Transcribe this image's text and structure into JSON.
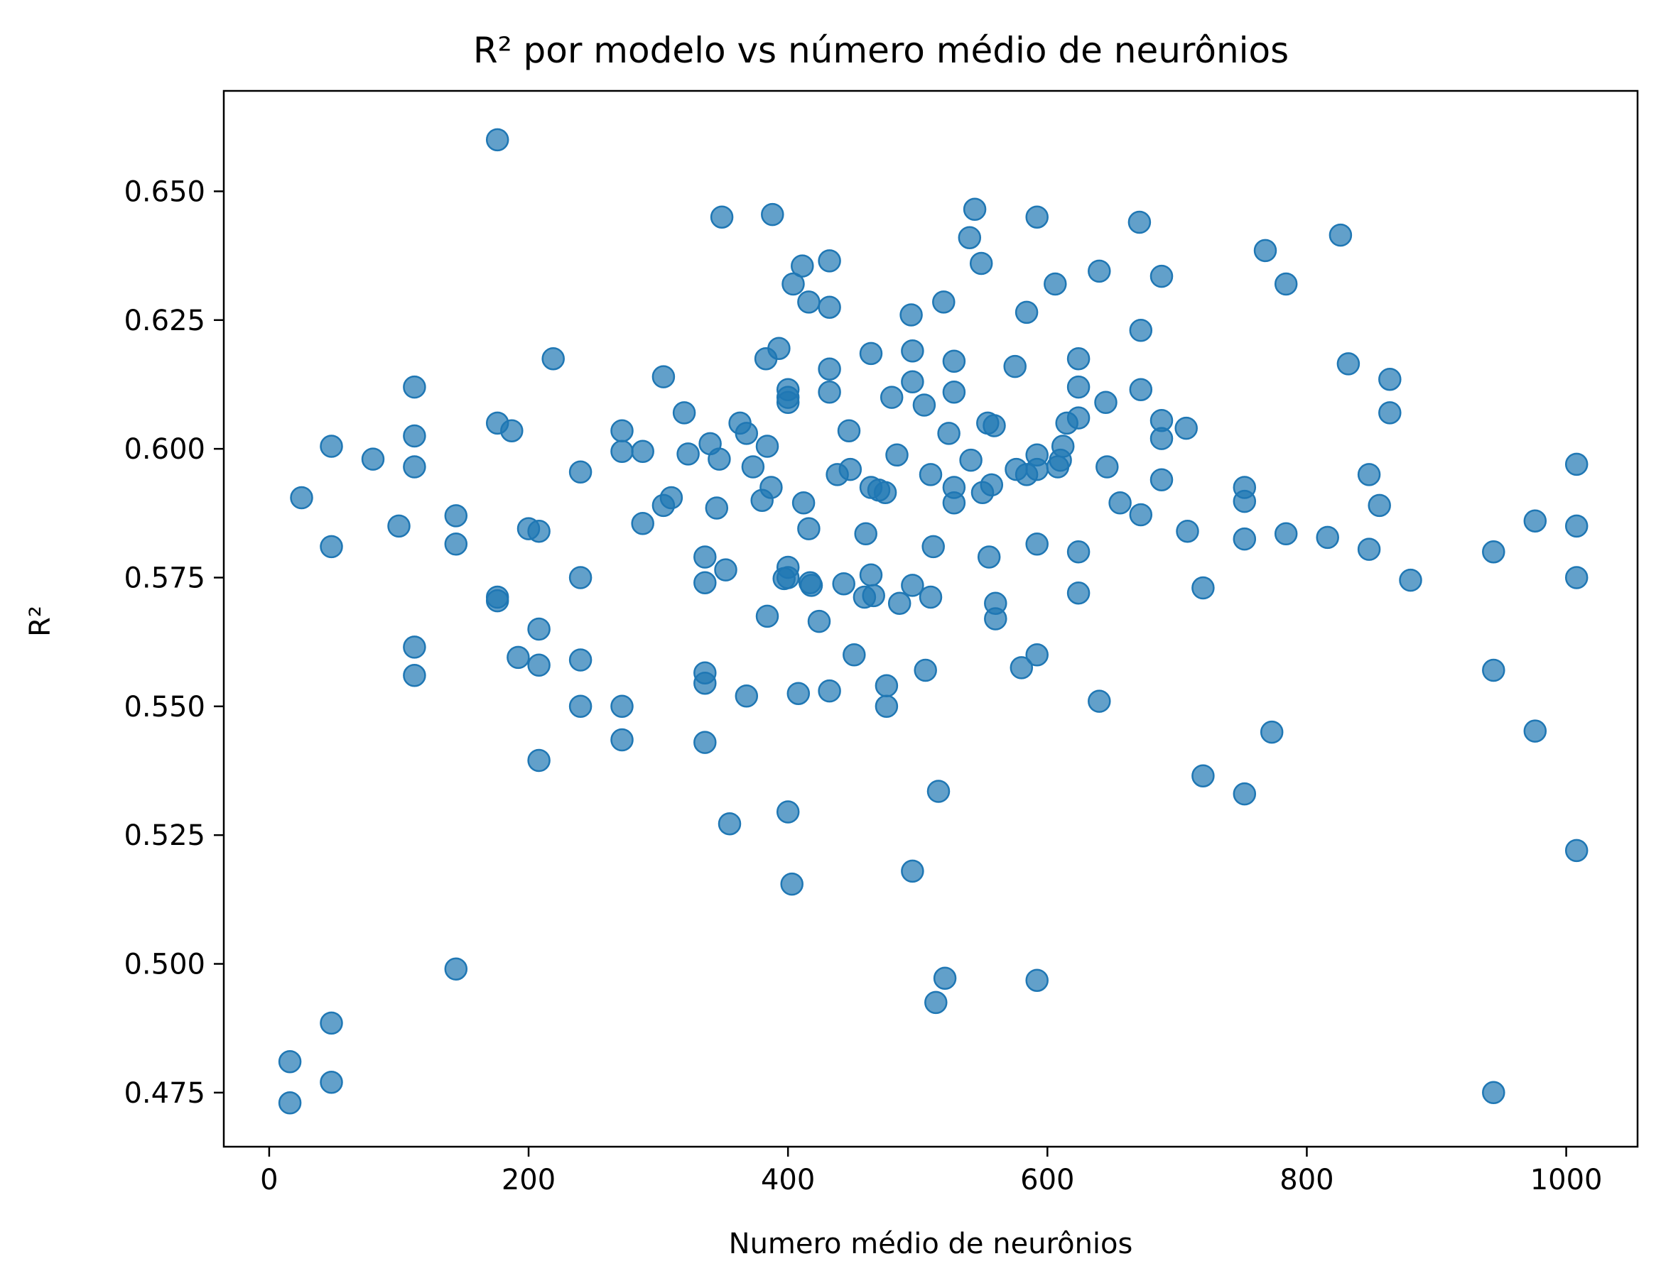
{
  "chart_data": {
    "type": "scatter",
    "title": "R² por modelo vs número médio de neurônios",
    "xlabel": "Numero médio de neurônios",
    "ylabel": "R²",
    "xlim": [
      -35,
      1055
    ],
    "ylim": [
      0.4645,
      0.6695
    ],
    "xticks": [
      0,
      200,
      400,
      600,
      800,
      1000
    ],
    "yticks": [
      0.475,
      0.5,
      0.525,
      0.55,
      0.575,
      0.6,
      0.625,
      0.65
    ],
    "xtick_labels": [
      "0",
      "200",
      "400",
      "600",
      "800",
      "1000"
    ],
    "ytick_labels": [
      "0.475",
      "0.500",
      "0.525",
      "0.550",
      "0.575",
      "0.600",
      "0.625",
      "0.650"
    ],
    "grid": false,
    "color": "#1f77b4",
    "points": [
      [
        16,
        0.481
      ],
      [
        16,
        0.473
      ],
      [
        48,
        0.4885
      ],
      [
        48,
        0.477
      ],
      [
        25,
        0.5905
      ],
      [
        48,
        0.6005
      ],
      [
        48,
        0.581
      ],
      [
        80,
        0.598
      ],
      [
        100,
        0.585
      ],
      [
        112,
        0.612
      ],
      [
        112,
        0.6025
      ],
      [
        112,
        0.5965
      ],
      [
        112,
        0.5615
      ],
      [
        112,
        0.556
      ],
      [
        144,
        0.587
      ],
      [
        144,
        0.5815
      ],
      [
        144,
        0.499
      ],
      [
        176,
        0.66
      ],
      [
        176,
        0.605
      ],
      [
        176,
        0.5712
      ],
      [
        176,
        0.5705
      ],
      [
        187,
        0.6035
      ],
      [
        192,
        0.5595
      ],
      [
        200,
        0.5845
      ],
      [
        208,
        0.584
      ],
      [
        208,
        0.565
      ],
      [
        208,
        0.558
      ],
      [
        208,
        0.5395
      ],
      [
        219,
        0.6175
      ],
      [
        240,
        0.5955
      ],
      [
        240,
        0.575
      ],
      [
        240,
        0.559
      ],
      [
        240,
        0.55
      ],
      [
        272,
        0.6035
      ],
      [
        272,
        0.5995
      ],
      [
        272,
        0.55
      ],
      [
        272,
        0.5435
      ],
      [
        288,
        0.5855
      ],
      [
        288,
        0.5995
      ],
      [
        304,
        0.614
      ],
      [
        304,
        0.589
      ],
      [
        310,
        0.5905
      ],
      [
        320,
        0.607
      ],
      [
        323,
        0.599
      ],
      [
        336,
        0.579
      ],
      [
        336,
        0.574
      ],
      [
        336,
        0.5565
      ],
      [
        336,
        0.5545
      ],
      [
        336,
        0.543
      ],
      [
        340,
        0.601
      ],
      [
        345,
        0.5885
      ],
      [
        347,
        0.598
      ],
      [
        349,
        0.645
      ],
      [
        352,
        0.5765
      ],
      [
        355,
        0.5272
      ],
      [
        363,
        0.605
      ],
      [
        368,
        0.603
      ],
      [
        368,
        0.552
      ],
      [
        373,
        0.5965
      ],
      [
        380,
        0.59
      ],
      [
        383,
        0.6175
      ],
      [
        384,
        0.6005
      ],
      [
        384,
        0.5675
      ],
      [
        387,
        0.5925
      ],
      [
        388,
        0.6455
      ],
      [
        393,
        0.6195
      ],
      [
        397,
        0.5748
      ],
      [
        400,
        0.6115
      ],
      [
        400,
        0.61
      ],
      [
        400,
        0.609
      ],
      [
        400,
        0.577
      ],
      [
        400,
        0.575
      ],
      [
        400,
        0.5295
      ],
      [
        403,
        0.5155
      ],
      [
        404,
        0.632
      ],
      [
        408,
        0.5525
      ],
      [
        411,
        0.6355
      ],
      [
        412,
        0.5895
      ],
      [
        416,
        0.6285
      ],
      [
        416,
        0.5845
      ],
      [
        417,
        0.574
      ],
      [
        418,
        0.5735
      ],
      [
        424,
        0.5665
      ],
      [
        432,
        0.6365
      ],
      [
        432,
        0.6275
      ],
      [
        432,
        0.6155
      ],
      [
        432,
        0.611
      ],
      [
        432,
        0.553
      ],
      [
        438,
        0.595
      ],
      [
        443,
        0.5738
      ],
      [
        447,
        0.6035
      ],
      [
        448,
        0.596
      ],
      [
        451,
        0.56
      ],
      [
        459,
        0.5712
      ],
      [
        460,
        0.5835
      ],
      [
        464,
        0.6185
      ],
      [
        464,
        0.5925
      ],
      [
        464,
        0.5755
      ],
      [
        466,
        0.5715
      ],
      [
        470,
        0.592
      ],
      [
        475,
        0.5915
      ],
      [
        476,
        0.554
      ],
      [
        476,
        0.55
      ],
      [
        480,
        0.61
      ],
      [
        484,
        0.5988
      ],
      [
        486,
        0.57
      ],
      [
        495,
        0.626
      ],
      [
        496,
        0.619
      ],
      [
        496,
        0.613
      ],
      [
        496,
        0.5735
      ],
      [
        496,
        0.518
      ],
      [
        505,
        0.6085
      ],
      [
        506,
        0.557
      ],
      [
        510,
        0.595
      ],
      [
        510,
        0.5712
      ],
      [
        512,
        0.581
      ],
      [
        514,
        0.4925
      ],
      [
        516,
        0.5335
      ],
      [
        520,
        0.6285
      ],
      [
        521,
        0.4972
      ],
      [
        524,
        0.603
      ],
      [
        528,
        0.617
      ],
      [
        528,
        0.611
      ],
      [
        528,
        0.5925
      ],
      [
        528,
        0.5895
      ],
      [
        540,
        0.641
      ],
      [
        541,
        0.5978
      ],
      [
        544,
        0.6465
      ],
      [
        549,
        0.636
      ],
      [
        550,
        0.5915
      ],
      [
        554,
        0.605
      ],
      [
        555,
        0.579
      ],
      [
        557,
        0.593
      ],
      [
        559,
        0.6045
      ],
      [
        560,
        0.57
      ],
      [
        560,
        0.567
      ],
      [
        575,
        0.616
      ],
      [
        576,
        0.596
      ],
      [
        580,
        0.5575
      ],
      [
        584,
        0.6265
      ],
      [
        584,
        0.595
      ],
      [
        592,
        0.645
      ],
      [
        592,
        0.5988
      ],
      [
        592,
        0.5815
      ],
      [
        592,
        0.596
      ],
      [
        592,
        0.56
      ],
      [
        592,
        0.4968
      ],
      [
        606,
        0.632
      ],
      [
        608,
        0.5965
      ],
      [
        610,
        0.5978
      ],
      [
        612,
        0.6005
      ],
      [
        615,
        0.605
      ],
      [
        624,
        0.6175
      ],
      [
        624,
        0.612
      ],
      [
        624,
        0.606
      ],
      [
        624,
        0.58
      ],
      [
        624,
        0.572
      ],
      [
        640,
        0.6345
      ],
      [
        640,
        0.551
      ],
      [
        645,
        0.609
      ],
      [
        646,
        0.5965
      ],
      [
        656,
        0.5895
      ],
      [
        671,
        0.644
      ],
      [
        672,
        0.623
      ],
      [
        672,
        0.6115
      ],
      [
        672,
        0.5872
      ],
      [
        688,
        0.6335
      ],
      [
        688,
        0.6055
      ],
      [
        688,
        0.602
      ],
      [
        688,
        0.594
      ],
      [
        707,
        0.604
      ],
      [
        708,
        0.584
      ],
      [
        720,
        0.573
      ],
      [
        720,
        0.5365
      ],
      [
        752,
        0.5925
      ],
      [
        752,
        0.5898
      ],
      [
        752,
        0.5825
      ],
      [
        752,
        0.533
      ],
      [
        768,
        0.6385
      ],
      [
        773,
        0.545
      ],
      [
        784,
        0.632
      ],
      [
        784,
        0.5835
      ],
      [
        816,
        0.5828
      ],
      [
        826,
        0.6415
      ],
      [
        832,
        0.6165
      ],
      [
        848,
        0.595
      ],
      [
        848,
        0.5805
      ],
      [
        856,
        0.589
      ],
      [
        864,
        0.6135
      ],
      [
        864,
        0.607
      ],
      [
        880,
        0.5745
      ],
      [
        944,
        0.58
      ],
      [
        944,
        0.557
      ],
      [
        944,
        0.475
      ],
      [
        976,
        0.586
      ],
      [
        976,
        0.5452
      ],
      [
        1008,
        0.597
      ],
      [
        1008,
        0.585
      ],
      [
        1008,
        0.575
      ],
      [
        1008,
        0.522
      ]
    ]
  }
}
